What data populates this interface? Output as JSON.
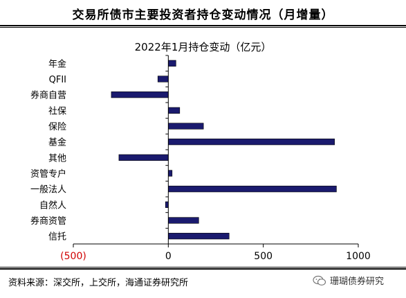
{
  "header": {
    "title": "交易所债市主要投资者持仓变动情况（月增量）"
  },
  "footer": {
    "source": "资料来源：深交所，上交所，海通证券研究所",
    "watermark": "珊瑚债券研究"
  },
  "colors": {
    "bar": "#1a1a6e",
    "negative_tick": "#d00000",
    "axis": "#000000"
  },
  "chart_data": {
    "type": "bar",
    "orientation": "horizontal",
    "title": "2022年1月持仓变动（亿元）",
    "categories": [
      "年金",
      "QFII",
      "券商自营",
      "社保",
      "保险",
      "基金",
      "其他",
      "资管专户",
      "一般法人",
      "自然人",
      "券商资管",
      "信托"
    ],
    "values": [
      40,
      -55,
      -300,
      60,
      185,
      875,
      -260,
      20,
      885,
      -15,
      160,
      320
    ],
    "xlim": [
      -500,
      1000
    ],
    "xticks": [
      -500,
      0,
      500,
      1000
    ],
    "xtick_labels": [
      "(500)",
      "0",
      "500",
      "1000"
    ],
    "xlabel": "",
    "ylabel": "",
    "grid": false,
    "legend": "none"
  }
}
